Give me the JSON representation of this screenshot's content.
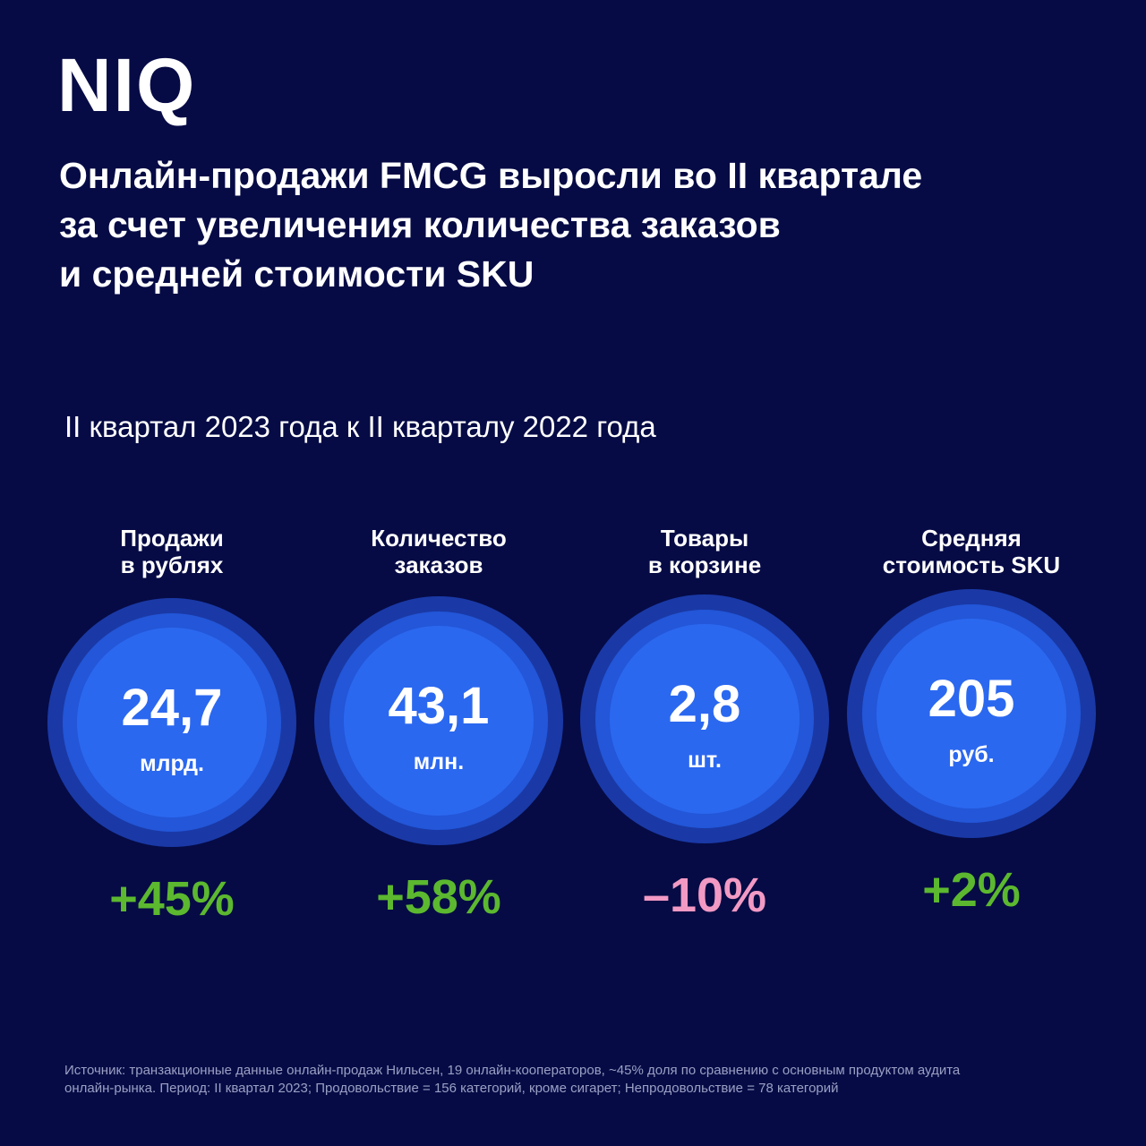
{
  "logo": "NIQ",
  "title": [
    "Онлайн-продажи FMCG выросли во II квартале",
    "за счет увеличения количества заказов",
    "и средней стоимости SKU"
  ],
  "subtitle": "II квартал 2023 года к II кварталу 2022 года",
  "metrics": [
    {
      "label": [
        "Продажи",
        "в рублях"
      ],
      "value": "24,7",
      "unit": "млрд.",
      "change": "+45%",
      "color": "#5cb82f"
    },
    {
      "label": [
        "Количество",
        "заказов"
      ],
      "value": "43,1",
      "unit": "млн.",
      "change": "+58%",
      "color": "#5cb82f"
    },
    {
      "label": [
        "Товары",
        "в корзине"
      ],
      "value": "2,8",
      "unit": "шт.",
      "change": "–10%",
      "color": "#f29ac4"
    },
    {
      "label": [
        "Средняя",
        "стоимость SKU"
      ],
      "value": "205",
      "unit": "руб.",
      "change": "+2%",
      "color": "#5cb82f"
    }
  ],
  "footnote": [
    "Источник: транзакционные данные онлайн-продаж Нильсен, 19 онлайн-кооператоров, ~45% доля по сравнению с основным продуктом аудита",
    "онлайн-рынка. Период: II квартал 2023; Продовольствие = 156 категорий, кроме сигарет; Непродовольствие = 78 категорий"
  ]
}
